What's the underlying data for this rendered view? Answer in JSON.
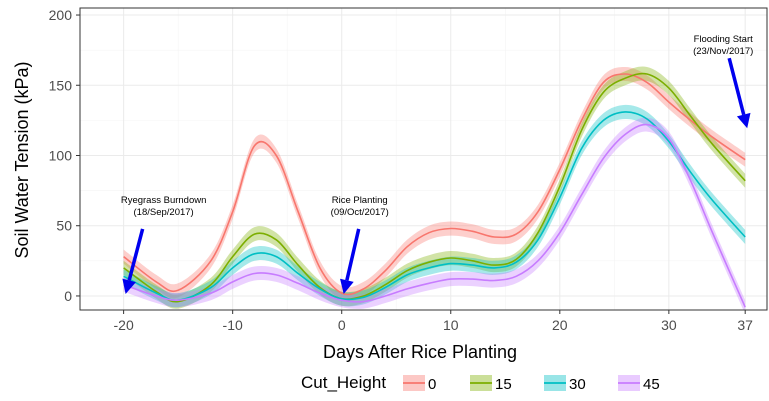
{
  "colors": {
    "0": "#F8766D",
    "15": "#7CAE00",
    "30": "#00BFC4",
    "45": "#C77CFF",
    "arrow": "#0000EE",
    "panel_border": "#333333",
    "grid": "#EBEBEB"
  },
  "chart_data": {
    "type": "line",
    "xlabel": "Days After Rice Planting",
    "ylabel": "Soil Water Tension (kPa)",
    "xlim": [
      -24,
      39
    ],
    "ylim": [
      -10,
      205
    ],
    "x_ticks": [
      -20,
      -10,
      0,
      10,
      20,
      30,
      37
    ],
    "x_tick_labels": [
      "-20",
      "-10",
      "0",
      "10",
      "20",
      "30",
      "37"
    ],
    "y_ticks": [
      0,
      50,
      100,
      150,
      200
    ],
    "y_tick_labels": [
      "0",
      "50",
      "100",
      "150",
      "200"
    ],
    "grid": true,
    "confidence_band": 5,
    "legend": {
      "title": "Cut_Height",
      "position": "bottom",
      "entries": [
        "0",
        "15",
        "30",
        "45"
      ]
    },
    "series": [
      {
        "name": "0",
        "x": [
          -20,
          -17,
          -15,
          -12,
          -10,
          -8,
          -6,
          -4,
          -2,
          0,
          2,
          4,
          6,
          8,
          10,
          12,
          14,
          16,
          18,
          20,
          22,
          24,
          26,
          28,
          30,
          32,
          34,
          37
        ],
        "y": [
          28,
          10,
          4,
          25,
          60,
          107,
          100,
          60,
          20,
          2,
          5,
          18,
          35,
          45,
          48,
          46,
          42,
          44,
          60,
          90,
          125,
          152,
          158,
          152,
          138,
          125,
          113,
          97
        ]
      },
      {
        "name": "15",
        "x": [
          -20,
          -17,
          -15,
          -12,
          -10,
          -8,
          -6,
          -4,
          -2,
          0,
          2,
          4,
          6,
          8,
          10,
          12,
          14,
          16,
          18,
          20,
          22,
          24,
          26,
          28,
          30,
          32,
          34,
          37
        ],
        "y": [
          20,
          3,
          -4,
          8,
          28,
          44,
          40,
          22,
          6,
          -2,
          0,
          8,
          18,
          24,
          27,
          25,
          22,
          26,
          45,
          78,
          118,
          145,
          155,
          158,
          148,
          128,
          108,
          82
        ]
      },
      {
        "name": "30",
        "x": [
          -20,
          -17,
          -15,
          -12,
          -10,
          -8,
          -6,
          -4,
          -2,
          0,
          2,
          4,
          6,
          8,
          10,
          12,
          14,
          16,
          18,
          20,
          22,
          24,
          26,
          28,
          30,
          32,
          34,
          37
        ],
        "y": [
          14,
          2,
          -3,
          6,
          20,
          30,
          28,
          16,
          5,
          -2,
          -1,
          6,
          15,
          20,
          23,
          22,
          20,
          24,
          40,
          70,
          105,
          125,
          131,
          126,
          110,
          88,
          68,
          42
        ]
      },
      {
        "name": "45",
        "x": [
          -20,
          -17,
          -15,
          -12,
          -10,
          -8,
          -6,
          -4,
          -2,
          0,
          2,
          4,
          6,
          8,
          10,
          12,
          14,
          16,
          18,
          20,
          22,
          24,
          26,
          28,
          30,
          32,
          34,
          37
        ],
        "y": [
          8,
          0,
          -3,
          2,
          10,
          16,
          15,
          9,
          2,
          -3,
          -4,
          0,
          5,
          9,
          12,
          12,
          11,
          14,
          25,
          45,
          72,
          98,
          115,
          122,
          112,
          82,
          45,
          -8
        ]
      }
    ],
    "annotations": [
      {
        "name": "ryegrass",
        "lines": [
          "Ryegrass Burndown",
          "(18/Sep/2017)"
        ],
        "x": -20,
        "y": 0
      },
      {
        "name": "rice-planting",
        "lines": [
          "Rice Planting",
          "(09/Oct/2017)"
        ],
        "x": 0,
        "y": 0
      },
      {
        "name": "flooding",
        "lines": [
          "Flooding Start",
          "(23/Nov/2017)"
        ],
        "x": 37,
        "y": 118
      }
    ]
  }
}
